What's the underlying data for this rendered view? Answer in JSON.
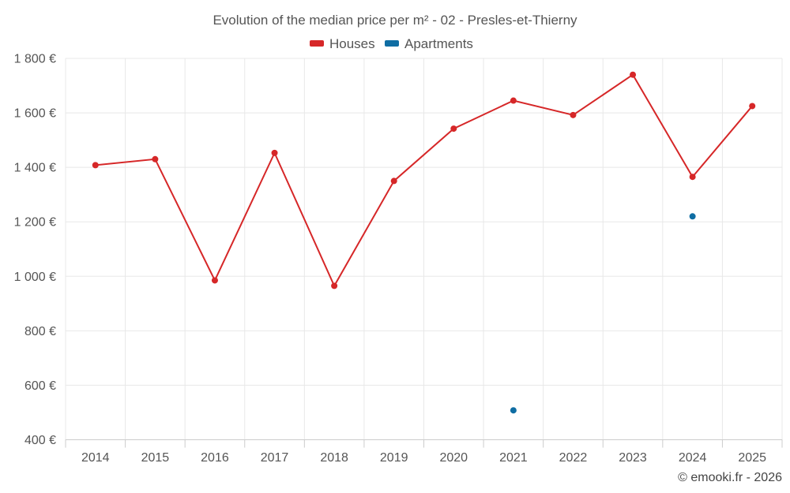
{
  "chart_data": {
    "type": "line",
    "title": "Evolution of the median price per m² - 02 - Presles-et-Thierny",
    "categories": [
      "2014",
      "2015",
      "2016",
      "2017",
      "2018",
      "2019",
      "2020",
      "2021",
      "2022",
      "2023",
      "2024",
      "2025"
    ],
    "series": [
      {
        "name": "Houses",
        "color": "#d62728",
        "values": [
          1408,
          1430,
          985,
          1453,
          965,
          1350,
          1542,
          1645,
          1592,
          1740,
          1365,
          1625
        ]
      },
      {
        "name": "Apartments",
        "color": "#0f6da3",
        "values": [
          null,
          null,
          null,
          null,
          null,
          null,
          null,
          508,
          null,
          null,
          1220,
          null
        ]
      }
    ],
    "ylim": [
      400,
      1800
    ],
    "yticks": [
      400,
      600,
      800,
      1000,
      1200,
      1400,
      1600,
      1800
    ],
    "ytick_labels": [
      "400 €",
      "600 €",
      "800 €",
      "1 000 €",
      "1 200 €",
      "1 400 €",
      "1 600 €",
      "1 800 €"
    ],
    "xlabel": "",
    "ylabel": "",
    "grid": true,
    "legend_position": "top-center"
  },
  "credit": "© emooki.fr - 2026"
}
